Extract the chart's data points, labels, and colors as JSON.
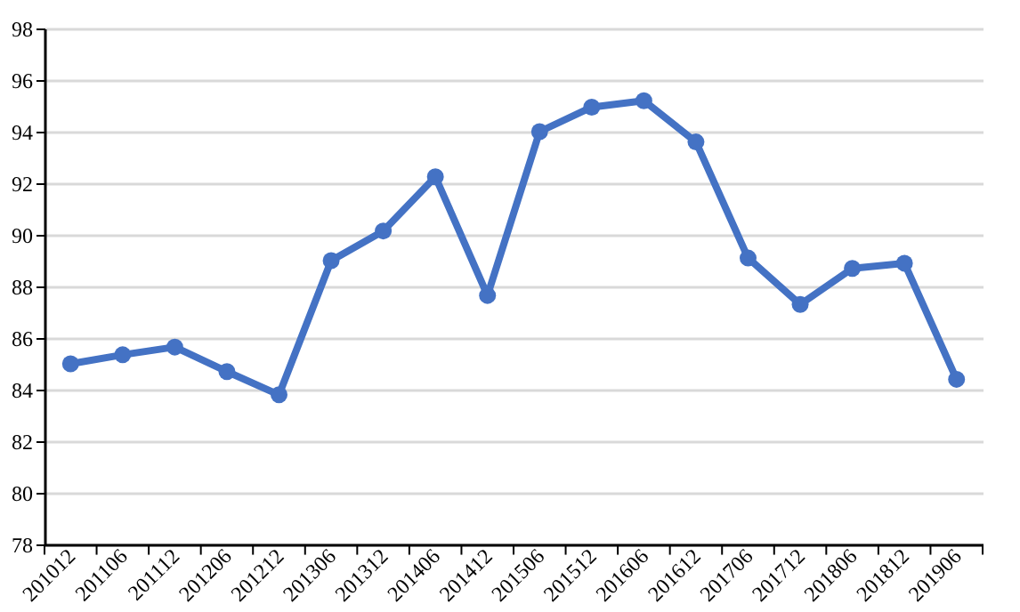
{
  "chart_data": {
    "type": "line",
    "categories": [
      "201012",
      "201106",
      "201112",
      "201206",
      "201212",
      "201306",
      "201312",
      "201406",
      "201412",
      "201506",
      "201512",
      "201606",
      "201612",
      "201706",
      "201712",
      "201806",
      "201812",
      "201906"
    ],
    "series": [
      {
        "color": "#4472c4",
        "values": [
          85.0,
          85.35,
          85.65,
          84.7,
          83.8,
          89.0,
          90.15,
          92.25,
          87.65,
          94.0,
          94.95,
          95.2,
          93.6,
          89.1,
          87.3,
          88.7,
          88.9,
          84.4
        ]
      }
    ],
    "ylim": [
      78,
      98
    ],
    "yticks": [
      78,
      80,
      82,
      84,
      86,
      88,
      90,
      92,
      94,
      96,
      98
    ],
    "grid": "y",
    "marker": "circle",
    "line_style": "solid"
  }
}
